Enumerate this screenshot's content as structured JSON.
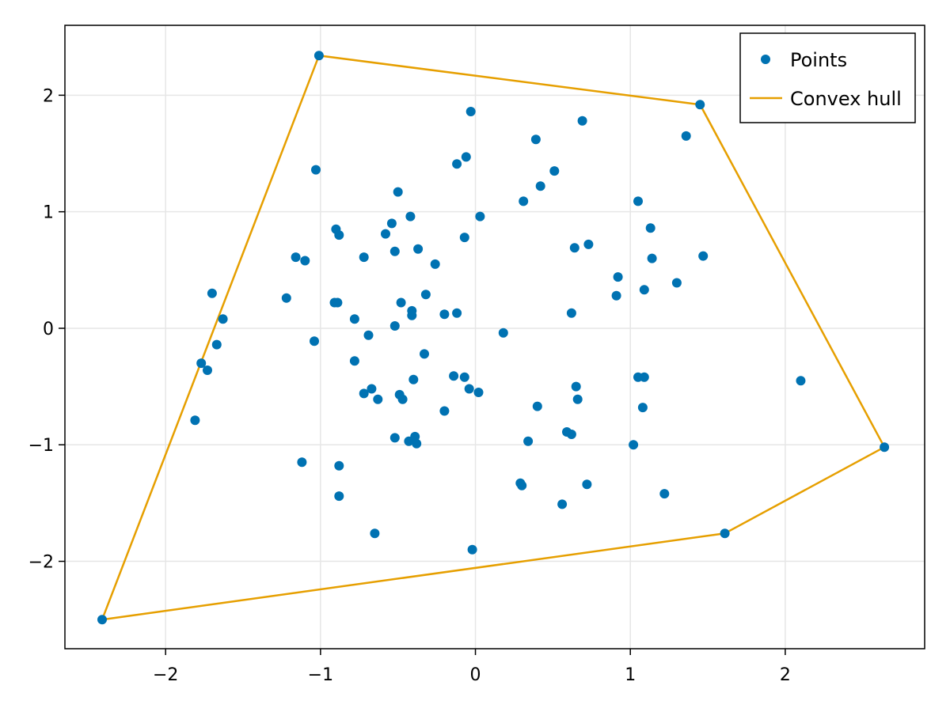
{
  "chart_data": {
    "type": "scatter",
    "title": "",
    "xlabel": "",
    "ylabel": "",
    "xlim": [
      -2.65,
      2.9
    ],
    "ylim": [
      -2.75,
      2.6
    ],
    "xticks": [
      -2,
      -1,
      0,
      1,
      2
    ],
    "yticks": [
      -2,
      -1,
      0,
      1,
      2
    ],
    "xtick_labels": [
      "−2",
      "−1",
      "0",
      "1",
      "2"
    ],
    "ytick_labels": [
      "−2",
      "−1",
      "0",
      "1",
      "2"
    ],
    "grid": true,
    "legend": {
      "placement": "top-right",
      "entries": [
        {
          "label": "Points",
          "marker": "circle",
          "color": "#0072b2"
        },
        {
          "label": "Convex hull",
          "marker": "line",
          "color": "#e69f00"
        }
      ]
    },
    "series": [
      {
        "name": "Points",
        "kind": "scatter",
        "color": "#0072b2",
        "points": [
          [
            -1.01,
            2.34
          ],
          [
            1.45,
            1.92
          ],
          [
            2.64,
            -1.02
          ],
          [
            1.61,
            -1.76
          ],
          [
            -2.41,
            -2.5
          ],
          [
            -1.7,
            0.3
          ],
          [
            -1.63,
            0.08
          ],
          [
            -1.67,
            -0.14
          ],
          [
            -1.77,
            -0.3
          ],
          [
            -1.73,
            -0.36
          ],
          [
            -1.81,
            -0.79
          ],
          [
            -1.03,
            1.36
          ],
          [
            -1.16,
            0.61
          ],
          [
            -1.1,
            0.58
          ],
          [
            -1.22,
            0.26
          ],
          [
            -1.04,
            -0.11
          ],
          [
            -1.12,
            -1.15
          ],
          [
            -0.9,
            0.85
          ],
          [
            -0.88,
            0.8
          ],
          [
            -0.91,
            0.22
          ],
          [
            -0.89,
            0.22
          ],
          [
            -0.88,
            -1.18
          ],
          [
            -0.88,
            -1.44
          ],
          [
            -0.78,
            0.08
          ],
          [
            -0.78,
            -0.28
          ],
          [
            -0.72,
            0.61
          ],
          [
            -0.69,
            -0.06
          ],
          [
            -0.72,
            -0.56
          ],
          [
            -0.67,
            -0.52
          ],
          [
            -0.63,
            -0.61
          ],
          [
            -0.65,
            -1.76
          ],
          [
            -0.5,
            1.17
          ],
          [
            -0.58,
            0.81
          ],
          [
            -0.54,
            0.9
          ],
          [
            -0.42,
            0.96
          ],
          [
            -0.52,
            0.66
          ],
          [
            -0.37,
            0.68
          ],
          [
            -0.48,
            0.22
          ],
          [
            -0.41,
            0.15
          ],
          [
            -0.41,
            0.11
          ],
          [
            -0.52,
            0.02
          ],
          [
            -0.32,
            0.29
          ],
          [
            -0.26,
            0.55
          ],
          [
            -0.33,
            -0.22
          ],
          [
            -0.4,
            -0.44
          ],
          [
            -0.49,
            -0.57
          ],
          [
            -0.47,
            -0.61
          ],
          [
            -0.52,
            -0.94
          ],
          [
            -0.39,
            -0.93
          ],
          [
            -0.43,
            -0.97
          ],
          [
            -0.38,
            -0.99
          ],
          [
            -0.03,
            1.86
          ],
          [
            -0.06,
            1.47
          ],
          [
            -0.12,
            1.41
          ],
          [
            0.03,
            0.96
          ],
          [
            -0.07,
            0.78
          ],
          [
            -0.2,
            0.12
          ],
          [
            -0.12,
            0.13
          ],
          [
            -0.14,
            -0.41
          ],
          [
            -0.07,
            -0.42
          ],
          [
            -0.04,
            -0.52
          ],
          [
            0.02,
            -0.55
          ],
          [
            -0.2,
            -0.71
          ],
          [
            -0.02,
            -1.9
          ],
          [
            0.69,
            1.78
          ],
          [
            0.39,
            1.62
          ],
          [
            0.51,
            1.35
          ],
          [
            0.42,
            1.22
          ],
          [
            0.31,
            1.09
          ],
          [
            0.18,
            -0.04
          ],
          [
            0.64,
            0.69
          ],
          [
            0.73,
            0.72
          ],
          [
            0.62,
            0.13
          ],
          [
            0.65,
            -0.5
          ],
          [
            0.66,
            -0.61
          ],
          [
            0.4,
            -0.67
          ],
          [
            0.59,
            -0.89
          ],
          [
            0.62,
            -0.91
          ],
          [
            0.34,
            -0.97
          ],
          [
            0.29,
            -1.33
          ],
          [
            0.3,
            -1.35
          ],
          [
            0.72,
            -1.34
          ],
          [
            0.56,
            -1.51
          ],
          [
            1.36,
            1.65
          ],
          [
            1.05,
            1.09
          ],
          [
            1.13,
            0.86
          ],
          [
            1.47,
            0.62
          ],
          [
            1.14,
            0.6
          ],
          [
            0.92,
            0.44
          ],
          [
            1.3,
            0.39
          ],
          [
            1.09,
            0.33
          ],
          [
            0.91,
            0.28
          ],
          [
            1.05,
            -0.42
          ],
          [
            1.09,
            -0.42
          ],
          [
            1.08,
            -0.68
          ],
          [
            1.02,
            -1.0
          ],
          [
            1.22,
            -1.42
          ],
          [
            2.1,
            -0.45
          ]
        ]
      },
      {
        "name": "Convex hull",
        "kind": "line",
        "color": "#e69f00",
        "points": [
          [
            -1.01,
            2.34
          ],
          [
            1.45,
            1.92
          ],
          [
            2.64,
            -1.02
          ],
          [
            1.61,
            -1.76
          ],
          [
            -2.41,
            -2.5
          ],
          [
            -1.01,
            2.34
          ]
        ]
      }
    ]
  }
}
